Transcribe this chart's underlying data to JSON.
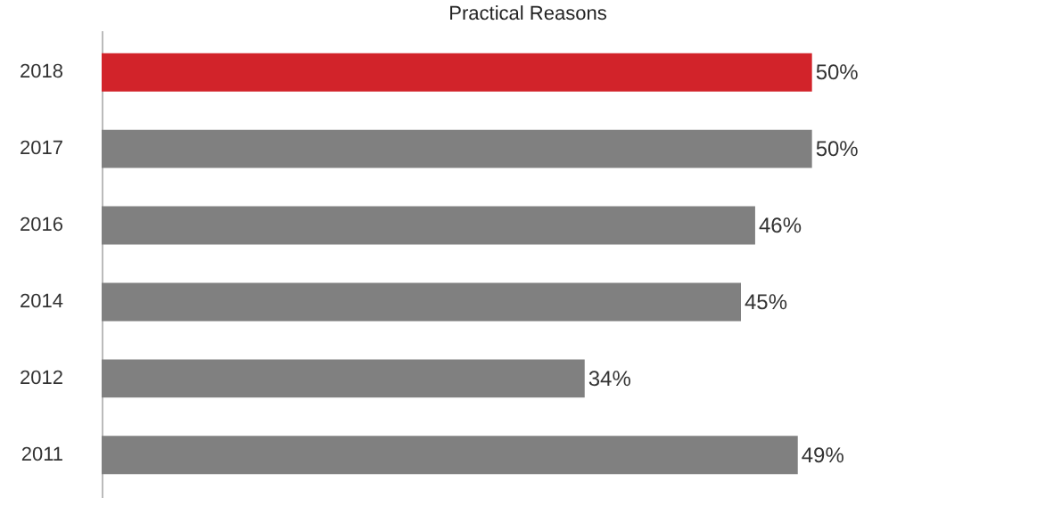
{
  "chart_data": {
    "type": "bar",
    "orientation": "horizontal",
    "title": "Practical Reasons",
    "categories": [
      "2018",
      "2017",
      "2016",
      "2014",
      "2012",
      "2011"
    ],
    "values": [
      50,
      50,
      46,
      45,
      34,
      49
    ],
    "value_labels": [
      "50%",
      "50%",
      "46%",
      "45%",
      "34%",
      "49%"
    ],
    "colors": [
      "#d2232a",
      "#808080",
      "#808080",
      "#808080",
      "#808080",
      "#808080"
    ],
    "grid": false
  }
}
